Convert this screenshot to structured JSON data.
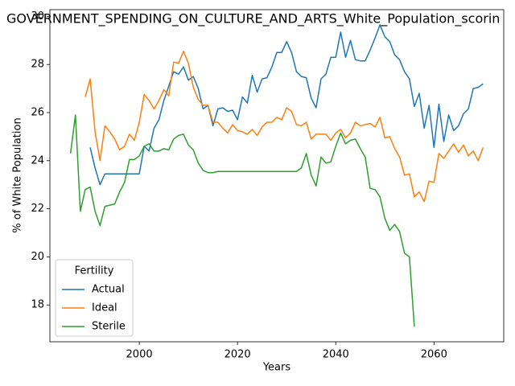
{
  "chart_data": {
    "type": "line",
    "title": "GOVERNMENT_SPENDING_ON_CULTURE_AND_ARTS_White_Population_scorin",
    "x_label": "Years",
    "y_label": "% of White Population",
    "x": [
      1986,
      1987,
      1988,
      1989,
      1990,
      1991,
      1992,
      1993,
      1994,
      1995,
      1996,
      1997,
      1998,
      1999,
      2000,
      2001,
      2002,
      2003,
      2004,
      2005,
      2006,
      2007,
      2008,
      2009,
      2010,
      2011,
      2012,
      2013,
      2014,
      2015,
      2016,
      2017,
      2018,
      2019,
      2020,
      2021,
      2022,
      2023,
      2024,
      2025,
      2026,
      2027,
      2028,
      2029,
      2030,
      2031,
      2032,
      2033,
      2034,
      2035,
      2036,
      2037,
      2038,
      2039,
      2040,
      2041,
      2042,
      2043,
      2044,
      2045,
      2046,
      2047,
      2048,
      2049,
      2050,
      2051,
      2052,
      2053,
      2054,
      2055,
      2056,
      2057,
      2058,
      2059,
      2060,
      2061,
      2062,
      2063,
      2064,
      2065,
      2066,
      2067,
      2068,
      2069,
      2070
    ],
    "series": [
      {
        "name": "Actual",
        "color": "#1f77b4",
        "values": [
          null,
          null,
          null,
          null,
          24.55,
          23.7,
          23.0,
          23.45,
          23.45,
          23.45,
          23.45,
          23.45,
          23.45,
          23.45,
          23.45,
          24.6,
          24.4,
          25.35,
          25.7,
          26.5,
          27.1,
          27.7,
          27.6,
          27.9,
          27.35,
          27.5,
          27.0,
          26.15,
          26.3,
          25.45,
          26.15,
          26.2,
          26.05,
          26.1,
          25.7,
          26.65,
          26.4,
          27.55,
          26.85,
          27.4,
          27.45,
          27.9,
          28.5,
          28.5,
          28.95,
          28.5,
          27.7,
          27.5,
          27.45,
          26.6,
          26.2,
          27.4,
          27.6,
          28.3,
          28.3,
          29.35,
          28.3,
          29.0,
          28.2,
          28.15,
          28.15,
          28.6,
          29.1,
          29.65,
          29.15,
          28.95,
          28.4,
          28.2,
          27.7,
          27.4,
          26.25,
          26.8,
          25.35,
          26.3,
          24.55,
          26.35,
          24.8,
          25.9,
          25.25,
          25.45,
          25.95,
          26.15,
          27.0,
          27.05,
          27.2
        ]
      },
      {
        "name": "Ideal",
        "color": "#ff7f0e",
        "values": [
          null,
          null,
          null,
          26.65,
          27.4,
          25.2,
          24.0,
          25.45,
          25.2,
          24.9,
          24.45,
          24.6,
          25.1,
          24.85,
          25.6,
          26.75,
          26.5,
          26.15,
          26.5,
          26.95,
          26.7,
          28.1,
          28.05,
          28.55,
          28.05,
          27.05,
          26.55,
          26.3,
          26.3,
          25.6,
          25.6,
          25.35,
          25.15,
          25.5,
          25.25,
          25.2,
          25.1,
          25.3,
          25.05,
          25.4,
          25.6,
          25.6,
          25.8,
          25.7,
          26.2,
          26.05,
          25.5,
          25.45,
          25.6,
          24.9,
          25.1,
          25.1,
          25.1,
          24.85,
          25.15,
          25.3,
          24.95,
          25.15,
          25.6,
          25.45,
          25.5,
          25.55,
          25.4,
          25.8,
          24.95,
          25.0,
          24.5,
          24.15,
          23.4,
          23.45,
          22.5,
          22.7,
          22.3,
          23.15,
          23.1,
          24.3,
          24.1,
          24.4,
          24.7,
          24.35,
          24.65,
          24.2,
          24.4,
          24.0,
          24.55
        ]
      },
      {
        "name": "Sterile",
        "color": "#2ca02c",
        "values": [
          24.3,
          25.9,
          21.9,
          22.8,
          22.9,
          21.9,
          21.3,
          22.1,
          22.15,
          22.2,
          22.7,
          23.1,
          24.05,
          24.05,
          24.2,
          24.6,
          24.7,
          24.4,
          24.4,
          24.5,
          24.45,
          24.9,
          25.05,
          25.1,
          24.65,
          24.45,
          23.9,
          23.6,
          23.5,
          23.5,
          23.55,
          23.55,
          23.55,
          23.55,
          23.55,
          23.55,
          23.55,
          23.55,
          23.55,
          23.55,
          23.55,
          23.55,
          23.55,
          23.55,
          23.55,
          23.55,
          23.55,
          23.7,
          24.3,
          23.4,
          22.95,
          24.15,
          23.9,
          23.95,
          24.6,
          25.15,
          24.7,
          24.85,
          24.9,
          24.5,
          24.15,
          22.85,
          22.8,
          22.5,
          21.6,
          21.1,
          21.35,
          21.05,
          20.15,
          20.0,
          17.1,
          null,
          null,
          null,
          null,
          null,
          null,
          null,
          null,
          null,
          null,
          null,
          null,
          null,
          null
        ]
      }
    ],
    "xlim": [
      1981.8,
      2074.2
    ],
    "xticks": [
      2000,
      2020,
      2040,
      2060
    ],
    "ylim": [
      16.47,
      30.28
    ],
    "yticks": [
      18,
      20,
      22,
      24,
      26,
      28,
      30
    ],
    "legend": {
      "title": "Fertility",
      "loc": "lower left"
    }
  }
}
